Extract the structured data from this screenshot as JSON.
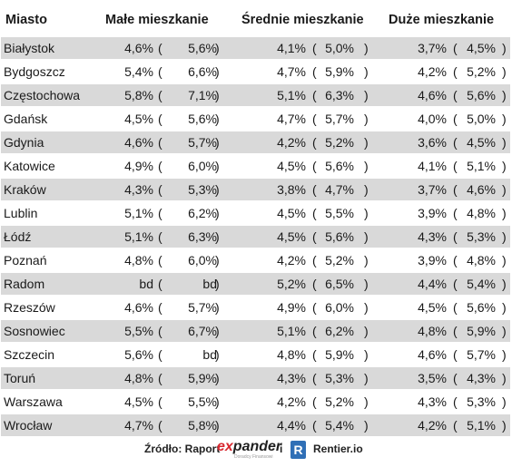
{
  "headers": {
    "city": "Miasto",
    "small": "Małe mieszkanie",
    "medium": "Średnie mieszkanie",
    "large": "Duże mieszkanie"
  },
  "rows": [
    {
      "city": "Białystok",
      "small_a": "4,6%",
      "small_b": "5,6%",
      "medium_a": "4,1%",
      "medium_b": "5,0%",
      "large_a": "3,7%",
      "large_b": "4,5%"
    },
    {
      "city": "Bydgoszcz",
      "small_a": "5,4%",
      "small_b": "6,6%",
      "medium_a": "4,7%",
      "medium_b": "5,9%",
      "large_a": "4,2%",
      "large_b": "5,2%"
    },
    {
      "city": "Częstochowa",
      "small_a": "5,8%",
      "small_b": "7,1%",
      "medium_a": "5,1%",
      "medium_b": "6,3%",
      "large_a": "4,6%",
      "large_b": "5,6%"
    },
    {
      "city": "Gdańsk",
      "small_a": "4,5%",
      "small_b": "5,6%",
      "medium_a": "4,7%",
      "medium_b": "5,7%",
      "large_a": "4,0%",
      "large_b": "5,0%"
    },
    {
      "city": "Gdynia",
      "small_a": "4,6%",
      "small_b": "5,7%",
      "medium_a": "4,2%",
      "medium_b": "5,2%",
      "large_a": "3,6%",
      "large_b": "4,5%"
    },
    {
      "city": "Katowice",
      "small_a": "4,9%",
      "small_b": "6,0%",
      "medium_a": "4,5%",
      "medium_b": "5,6%",
      "large_a": "4,1%",
      "large_b": "5,1%"
    },
    {
      "city": "Kraków",
      "small_a": "4,3%",
      "small_b": "5,3%",
      "medium_a": "3,8%",
      "medium_b": "4,7%",
      "large_a": "3,7%",
      "large_b": "4,6%"
    },
    {
      "city": "Lublin",
      "small_a": "5,1%",
      "small_b": "6,2%",
      "medium_a": "4,5%",
      "medium_b": "5,5%",
      "large_a": "3,9%",
      "large_b": "4,8%"
    },
    {
      "city": "Łódź",
      "small_a": "5,1%",
      "small_b": "6,3%",
      "medium_a": "4,5%",
      "medium_b": "5,6%",
      "large_a": "4,3%",
      "large_b": "5,3%"
    },
    {
      "city": "Poznań",
      "small_a": "4,8%",
      "small_b": "6,0%",
      "medium_a": "4,2%",
      "medium_b": "5,2%",
      "large_a": "3,9%",
      "large_b": "4,8%"
    },
    {
      "city": "Radom",
      "small_a": "bd",
      "small_b": "bd",
      "medium_a": "5,2%",
      "medium_b": "6,5%",
      "large_a": "4,4%",
      "large_b": "5,4%"
    },
    {
      "city": "Rzeszów",
      "small_a": "4,6%",
      "small_b": "5,7%",
      "medium_a": "4,9%",
      "medium_b": "6,0%",
      "large_a": "4,5%",
      "large_b": "5,6%"
    },
    {
      "city": "Sosnowiec",
      "small_a": "5,5%",
      "small_b": "6,7%",
      "medium_a": "5,1%",
      "medium_b": "6,2%",
      "large_a": "4,8%",
      "large_b": "5,9%"
    },
    {
      "city": "Szczecin",
      "small_a": "5,6%",
      "small_b": "bd",
      "medium_a": "4,8%",
      "medium_b": "5,9%",
      "large_a": "4,6%",
      "large_b": "5,7%"
    },
    {
      "city": "Toruń",
      "small_a": "4,8%",
      "small_b": "5,9%",
      "medium_a": "4,3%",
      "medium_b": "5,3%",
      "large_a": "3,5%",
      "large_b": "4,3%"
    },
    {
      "city": "Warszawa",
      "small_a": "4,5%",
      "small_b": "5,5%",
      "medium_a": "4,2%",
      "medium_b": "5,2%",
      "large_a": "4,3%",
      "large_b": "5,3%"
    },
    {
      "city": "Wrocław",
      "small_a": "4,7%",
      "small_b": "5,8%",
      "medium_a": "4,4%",
      "medium_b": "5,4%",
      "large_a": "4,2%",
      "large_b": "5,1%"
    }
  ],
  "footer": {
    "source_label": "Źródło: Raport",
    "expander_ex": "ex",
    "expander_rest": "pander",
    "expander_tagline": "Doradcy Finansowi",
    "conjunction": "i",
    "rentier_letter": "R",
    "rentier_text": "Rentier.io"
  },
  "colors": {
    "row_shade": "#d9d9d9",
    "expander_red": "#d8262e",
    "rentier_blue": "#2f6fb6"
  }
}
